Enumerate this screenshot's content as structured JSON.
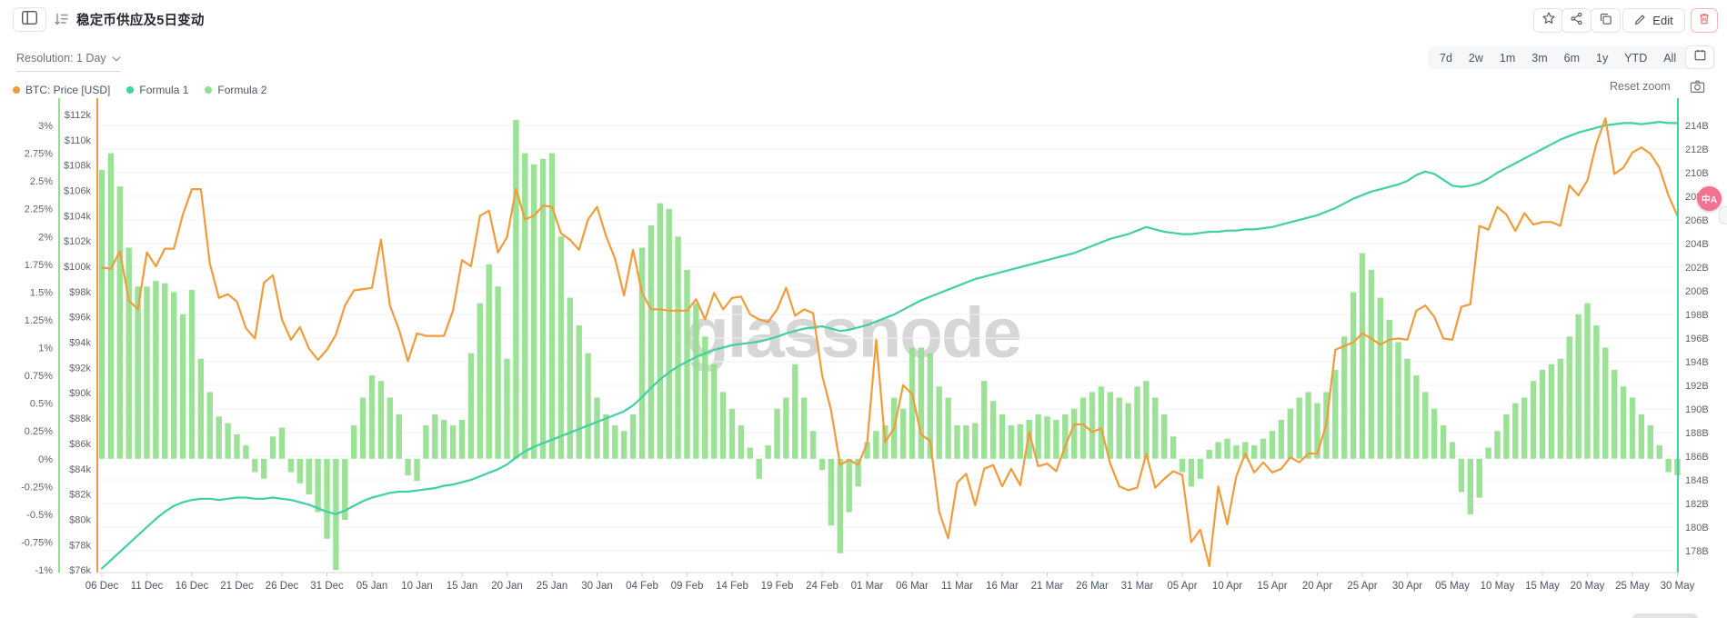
{
  "header": {
    "title": "稳定币供应及5日变动",
    "edit_label": "Edit"
  },
  "toolbar": {
    "resolution_label": "Resolution: 1 Day",
    "ranges": [
      "7d",
      "2w",
      "1m",
      "3m",
      "6m",
      "1y",
      "YTD",
      "All"
    ],
    "reset_zoom_label": "Reset zoom"
  },
  "legend": [
    {
      "label": "BTC: Price [USD]",
      "color": "#F09C3C"
    },
    {
      "label": "Formula 1",
      "color": "#42CFA3"
    },
    {
      "label": "Formula 2",
      "color": "#92DF8E"
    }
  ],
  "watermark": "glassnode",
  "translate_badge_text": "中A",
  "chart_data": {
    "type": "mixed",
    "title": "稳定币供应及5日变动",
    "days_per_label": 5,
    "x_labels": [
      "06 Dec",
      "11 Dec",
      "16 Dec",
      "21 Dec",
      "26 Dec",
      "31 Dec",
      "05 Jan",
      "10 Jan",
      "15 Jan",
      "20 Jan",
      "25 Jan",
      "30 Jan",
      "04 Feb",
      "09 Feb",
      "14 Feb",
      "19 Feb",
      "24 Feb",
      "01 Mar",
      "06 Mar",
      "11 Mar",
      "16 Mar",
      "21 Mar",
      "26 Mar",
      "31 Mar",
      "05 Apr",
      "10 Apr",
      "15 Apr",
      "20 Apr",
      "25 Apr",
      "30 Apr",
      "05 May",
      "10 May",
      "15 May",
      "20 May",
      "25 May",
      "30 May"
    ],
    "axes": {
      "percent": {
        "position": "outer-left",
        "color": "#92DF8E",
        "min": -1,
        "max": 3,
        "ticks": [
          "3%",
          "2.75%",
          "2.5%",
          "2.25%",
          "2%",
          "1.75%",
          "1.5%",
          "1.25%",
          "1%",
          "0.75%",
          "0.5%",
          "0.25%",
          "0%",
          "-0.25%",
          "-0.5%",
          "-0.75%",
          "-1%"
        ]
      },
      "usd": {
        "position": "left",
        "color": "#F09C3C",
        "min": 76000,
        "max": 112000,
        "ticks": [
          "$112k",
          "$110k",
          "$108k",
          "$106k",
          "$104k",
          "$102k",
          "$100k",
          "$98k",
          "$96k",
          "$94k",
          "$92k",
          "$90k",
          "$88k",
          "$86k",
          "$84k",
          "$82k",
          "$80k",
          "$78k",
          "$76k"
        ]
      },
      "supply_billions": {
        "position": "right",
        "color": "#42CFA3",
        "min": 178,
        "max": 214,
        "ticks": [
          "214B",
          "212B",
          "210B",
          "208B",
          "206B",
          "204B",
          "202B",
          "200B",
          "198B",
          "196B",
          "194B",
          "192B",
          "190B",
          "188B",
          "186B",
          "184B",
          "182B",
          "180B",
          "178B"
        ]
      }
    },
    "series": [
      {
        "name": "BTC: Price [USD]",
        "type": "line",
        "axis": "usd",
        "color": "#F09C3C",
        "unit": "$k",
        "values": [
          99.9,
          99.8,
          101.2,
          97.3,
          96.6,
          101.1,
          100.0,
          101.4,
          101.4,
          104.1,
          106.1,
          106.1,
          100.2,
          97.5,
          97.8,
          97.2,
          95.1,
          94.3,
          98.7,
          99.3,
          95.8,
          94.2,
          95.2,
          93.5,
          92.6,
          93.4,
          94.6,
          96.9,
          98.1,
          98.2,
          98.3,
          102.1,
          96.9,
          95.0,
          92.5,
          94.7,
          94.5,
          94.5,
          94.5,
          96.5,
          100.5,
          100.0,
          104.0,
          104.4,
          101.1,
          102.3,
          106.1,
          103.7,
          104.0,
          104.8,
          104.7,
          102.6,
          102.1,
          101.3,
          103.7,
          104.7,
          102.4,
          100.6,
          97.7,
          101.3,
          97.9,
          96.6,
          96.6,
          96.5,
          96.5,
          96.5,
          97.4,
          95.8,
          97.9,
          96.6,
          97.5,
          97.6,
          96.2,
          95.8,
          95.6,
          96.6,
          98.3,
          96.1,
          96.6,
          96.3,
          91.4,
          88.6,
          84.3,
          84.7,
          84.3,
          86.0,
          94.2,
          86.1,
          87.2,
          90.6,
          89.9,
          86.7,
          86.2,
          80.6,
          78.5,
          82.9,
          83.6,
          81.1,
          84.0,
          84.3,
          82.6,
          84.0,
          82.7,
          86.9,
          84.2,
          84.4,
          83.8,
          85.8,
          87.5,
          87.5,
          86.9,
          87.2,
          84.4,
          82.6,
          82.3,
          82.5,
          85.2,
          82.5,
          83.2,
          83.8,
          83.5,
          78.2,
          79.2,
          76.3,
          82.6,
          79.6,
          83.4,
          85.2,
          83.7,
          84.5,
          83.7,
          84.0,
          84.9,
          84.5,
          85.2,
          85.2,
          87.5,
          93.4,
          93.7,
          94.0,
          94.7,
          94.3,
          93.8,
          94.2,
          94.3,
          94.2,
          96.5,
          96.9,
          96.0,
          94.3,
          94.2,
          96.8,
          97.0,
          103.2,
          102.9,
          104.7,
          104.1,
          102.8,
          104.2,
          103.3,
          103.5,
          103.5,
          103.2,
          106.4,
          105.6,
          106.8,
          109.7,
          111.7,
          107.3,
          107.8,
          109.0,
          109.4,
          108.9,
          107.8,
          105.6,
          104.0
        ]
      },
      {
        "name": "Formula 1",
        "type": "line",
        "axis": "supply_billions",
        "color": "#42CFA3",
        "unit": "B",
        "values": [
          176.5,
          177.2,
          177.9,
          178.6,
          179.3,
          180.0,
          180.7,
          181.3,
          181.8,
          182.1,
          182.3,
          182.4,
          182.4,
          182.3,
          182.4,
          182.5,
          182.5,
          182.4,
          182.4,
          182.5,
          182.4,
          182.3,
          182.1,
          181.9,
          181.6,
          181.3,
          181.1,
          181.4,
          181.8,
          182.2,
          182.5,
          182.7,
          182.9,
          183.0,
          183.0,
          183.1,
          183.2,
          183.3,
          183.5,
          183.6,
          183.8,
          184.0,
          184.3,
          184.6,
          184.9,
          185.3,
          185.9,
          186.4,
          186.8,
          187.1,
          187.4,
          187.7,
          188.0,
          188.3,
          188.6,
          188.9,
          189.2,
          189.5,
          189.8,
          190.3,
          191.0,
          191.8,
          192.5,
          193.1,
          193.6,
          194.0,
          194.4,
          194.7,
          195.0,
          195.2,
          195.4,
          195.5,
          195.6,
          195.7,
          195.9,
          196.1,
          196.4,
          196.6,
          196.8,
          196.9,
          197.0,
          196.8,
          196.6,
          196.7,
          196.9,
          197.1,
          197.4,
          197.7,
          198.0,
          198.4,
          198.8,
          199.2,
          199.5,
          199.8,
          200.1,
          200.4,
          200.7,
          201.0,
          201.2,
          201.4,
          201.6,
          201.8,
          202.0,
          202.2,
          202.4,
          202.6,
          202.8,
          203.0,
          203.2,
          203.5,
          203.8,
          204.1,
          204.4,
          204.6,
          204.8,
          205.1,
          205.4,
          205.2,
          205.0,
          204.9,
          204.8,
          204.8,
          204.9,
          205.0,
          205.0,
          205.1,
          205.1,
          205.2,
          205.2,
          205.3,
          205.4,
          205.6,
          205.8,
          206.0,
          206.2,
          206.4,
          206.7,
          207.0,
          207.4,
          207.8,
          208.1,
          208.4,
          208.6,
          208.8,
          209.0,
          209.3,
          209.8,
          210.1,
          209.9,
          209.4,
          208.9,
          208.8,
          208.9,
          209.1,
          209.5,
          210.0,
          210.4,
          210.8,
          211.2,
          211.6,
          212.0,
          212.4,
          212.8,
          213.1,
          213.4,
          213.6,
          213.8,
          214.0,
          214.1,
          214.2,
          214.2,
          214.1,
          214.2,
          214.3,
          214.2,
          214.2
        ]
      },
      {
        "name": "Formula 2",
        "type": "bar",
        "axis": "percent",
        "color": "#92DF8E",
        "unit": "%",
        "values": [
          2.6,
          2.75,
          2.45,
          1.9,
          1.55,
          1.55,
          1.6,
          1.58,
          1.5,
          1.3,
          1.52,
          0.9,
          0.6,
          0.38,
          0.32,
          0.22,
          0.12,
          -0.12,
          -0.18,
          0.2,
          0.28,
          -0.12,
          -0.22,
          -0.32,
          -0.48,
          -0.72,
          -1.0,
          -0.55,
          0.3,
          0.55,
          0.75,
          0.7,
          0.55,
          0.4,
          -0.15,
          -0.2,
          0.3,
          0.4,
          0.35,
          0.3,
          0.35,
          0.95,
          1.4,
          1.75,
          1.55,
          0.9,
          3.05,
          2.75,
          2.65,
          2.7,
          2.75,
          2.0,
          1.45,
          1.2,
          0.95,
          0.55,
          0.4,
          0.3,
          0.25,
          0.4,
          1.9,
          2.1,
          2.3,
          2.25,
          2.0,
          1.7,
          1.4,
          1.1,
          0.85,
          0.6,
          0.45,
          0.3,
          0.1,
          -0.18,
          0.12,
          0.45,
          0.55,
          0.85,
          0.55,
          0.25,
          -0.1,
          -0.6,
          -0.85,
          -0.48,
          -0.25,
          0.15,
          0.25,
          0.3,
          0.55,
          0.45,
          1.0,
          1.0,
          0.95,
          0.65,
          0.55,
          0.3,
          0.3,
          0.32,
          0.7,
          0.52,
          0.4,
          0.3,
          0.31,
          0.35,
          0.4,
          0.38,
          0.35,
          0.4,
          0.45,
          0.55,
          0.6,
          0.65,
          0.6,
          0.55,
          0.5,
          0.65,
          0.7,
          0.55,
          0.4,
          0.2,
          -0.12,
          -0.25,
          -0.18,
          0.08,
          0.15,
          0.18,
          0.12,
          0.15,
          0.12,
          0.18,
          0.25,
          0.35,
          0.45,
          0.55,
          0.6,
          0.5,
          0.6,
          0.8,
          1.1,
          1.5,
          1.85,
          1.7,
          1.45,
          1.25,
          1.05,
          0.9,
          0.75,
          0.6,
          0.45,
          0.3,
          0.15,
          -0.3,
          -0.5,
          -0.35,
          0.1,
          0.25,
          0.4,
          0.5,
          0.55,
          0.7,
          0.8,
          0.85,
          0.9,
          1.1,
          1.3,
          1.4,
          1.2,
          1.0,
          0.8,
          0.65,
          0.55,
          0.4,
          0.3,
          0.12,
          -0.12,
          -0.15
        ]
      }
    ]
  }
}
